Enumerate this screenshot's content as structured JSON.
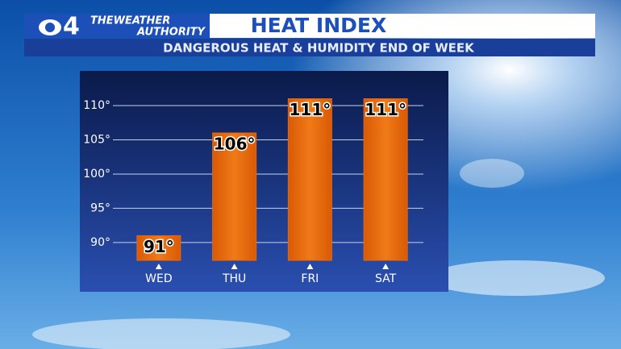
{
  "chart_data": {
    "type": "bar",
    "logo": {
      "network": "4",
      "line1": "THEWEATHER",
      "line2": "AUTHORITY"
    },
    "title": "HEAT INDEX",
    "subtitle": "DANGEROUS HEAT & HUMIDITY END OF WEEK",
    "categories": [
      "WED",
      "THU",
      "FRI",
      "SAT"
    ],
    "values": [
      91,
      106,
      111,
      111
    ],
    "value_labels": [
      "91°",
      "106°",
      "111°",
      "111°"
    ],
    "color": "#e8690c",
    "ylim": [
      87.4,
      112
    ],
    "yticks": [
      {
        "value": 90,
        "label": "90°"
      },
      {
        "value": 95,
        "label": "95°"
      },
      {
        "value": 100,
        "label": "100°"
      },
      {
        "value": 105,
        "label": "105°"
      },
      {
        "value": 110,
        "label": "110°"
      }
    ],
    "grid": true
  }
}
